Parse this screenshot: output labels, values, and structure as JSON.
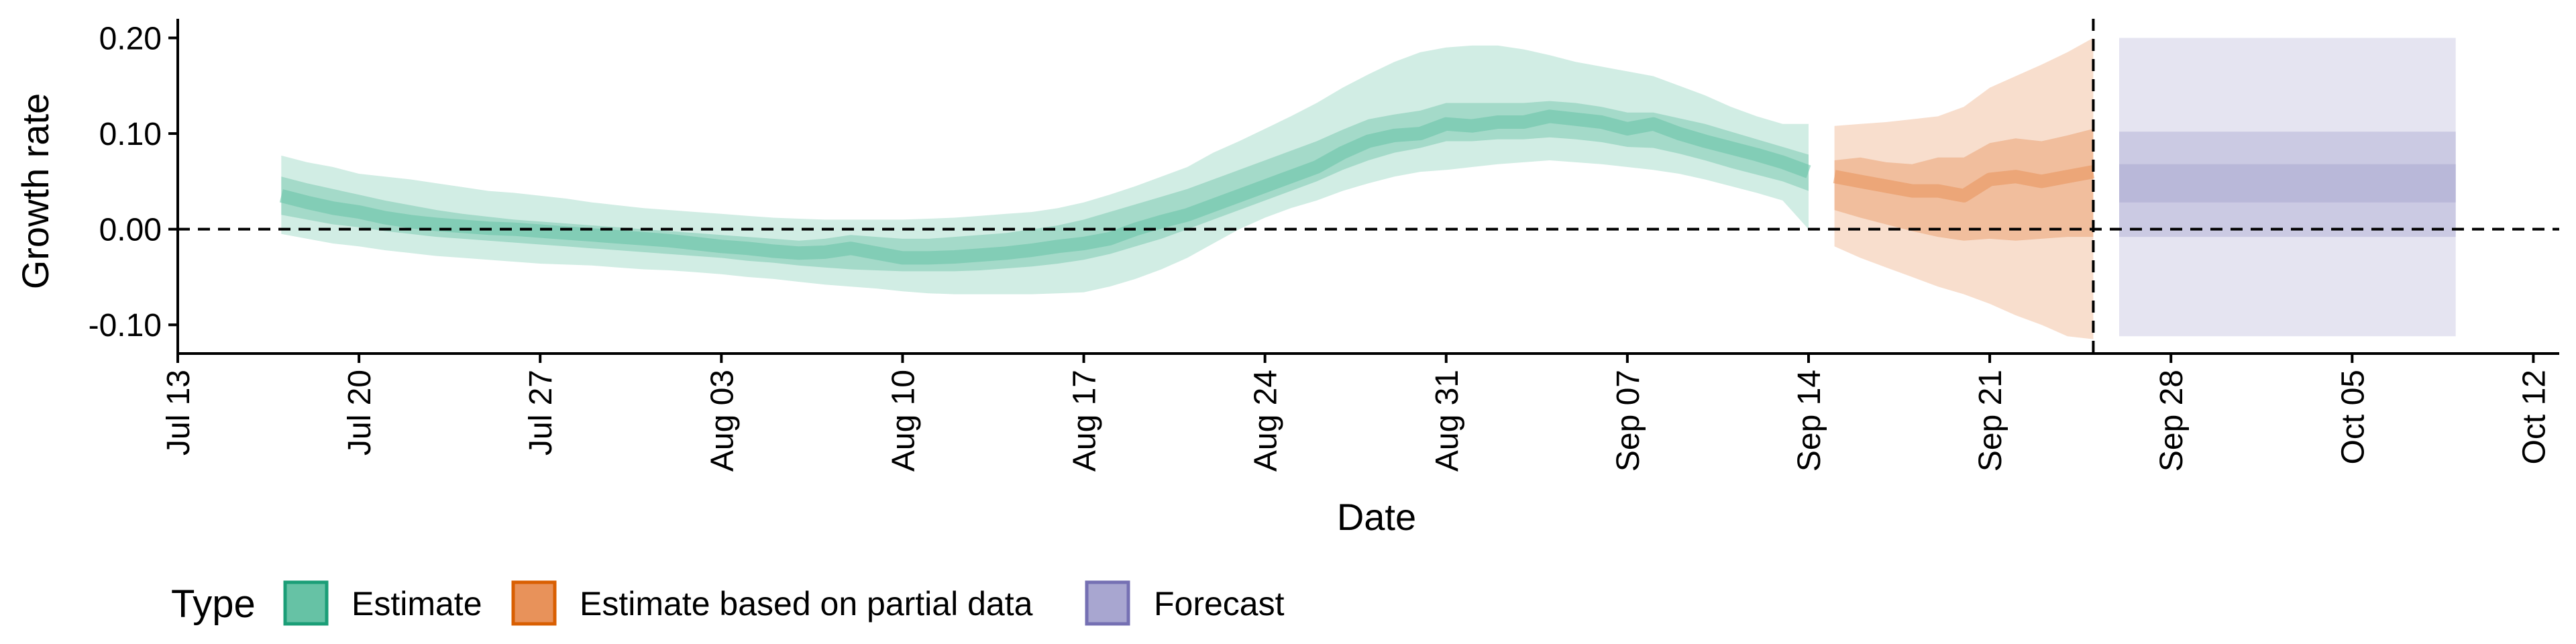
{
  "chart_data": {
    "type": "area",
    "xlabel": "Date",
    "ylabel": "Growth rate",
    "ylim": [
      -0.13,
      0.22
    ],
    "xlim": [
      "2020-07-13",
      "2020-10-13"
    ],
    "x_ticks": [
      {
        "date": "2020-07-13",
        "label": "Jul 13"
      },
      {
        "date": "2020-07-20",
        "label": "Jul 20"
      },
      {
        "date": "2020-07-27",
        "label": "Jul 27"
      },
      {
        "date": "2020-08-03",
        "label": "Aug 03"
      },
      {
        "date": "2020-08-10",
        "label": "Aug 10"
      },
      {
        "date": "2020-08-17",
        "label": "Aug 17"
      },
      {
        "date": "2020-08-24",
        "label": "Aug 24"
      },
      {
        "date": "2020-08-31",
        "label": "Aug 31"
      },
      {
        "date": "2020-09-07",
        "label": "Sep 07"
      },
      {
        "date": "2020-09-14",
        "label": "Sep 14"
      },
      {
        "date": "2020-09-21",
        "label": "Sep 21"
      },
      {
        "date": "2020-09-28",
        "label": "Sep 28"
      },
      {
        "date": "2020-10-05",
        "label": "Oct 05"
      },
      {
        "date": "2020-10-12",
        "label": "Oct 12"
      }
    ],
    "y_ticks": [
      {
        "value": -0.1,
        "label": "-0.10"
      },
      {
        "value": 0.0,
        "label": "0.00"
      },
      {
        "value": 0.1,
        "label": "0.10"
      },
      {
        "value": 0.2,
        "label": "0.20"
      }
    ],
    "reference_lines": {
      "horizontal_y": 0.0,
      "vertical_x": "2020-09-25"
    },
    "grid": false,
    "legend": {
      "position": "bottom",
      "title": "Type",
      "entries": [
        {
          "label": "Estimate",
          "fill": "#66c2a5",
          "stroke": "#1b9e77"
        },
        {
          "label": "Estimate based on partial data",
          "fill": "#e8925a",
          "stroke": "#d95f02"
        },
        {
          "label": "Forecast",
          "fill": "#a8a6d0",
          "stroke": "#7570b3"
        }
      ]
    },
    "series": [
      {
        "name": "Estimate",
        "color": "#66c2a5",
        "x": [
          "2020-07-17",
          "2020-07-18",
          "2020-07-19",
          "2020-07-20",
          "2020-07-21",
          "2020-07-22",
          "2020-07-23",
          "2020-07-24",
          "2020-07-25",
          "2020-07-26",
          "2020-07-27",
          "2020-07-28",
          "2020-07-29",
          "2020-07-30",
          "2020-07-31",
          "2020-08-01",
          "2020-08-02",
          "2020-08-03",
          "2020-08-04",
          "2020-08-05",
          "2020-08-06",
          "2020-08-07",
          "2020-08-08",
          "2020-08-09",
          "2020-08-10",
          "2020-08-11",
          "2020-08-12",
          "2020-08-13",
          "2020-08-14",
          "2020-08-15",
          "2020-08-16",
          "2020-08-17",
          "2020-08-18",
          "2020-08-19",
          "2020-08-20",
          "2020-08-21",
          "2020-08-22",
          "2020-08-23",
          "2020-08-24",
          "2020-08-25",
          "2020-08-26",
          "2020-08-27",
          "2020-08-28",
          "2020-08-29",
          "2020-08-30",
          "2020-08-31",
          "2020-09-01",
          "2020-09-02",
          "2020-09-03",
          "2020-09-04",
          "2020-09-05",
          "2020-09-06",
          "2020-09-07",
          "2020-09-08",
          "2020-09-09",
          "2020-09-10",
          "2020-09-11",
          "2020-09-12",
          "2020-09-13",
          "2020-09-14"
        ],
        "median": [
          0.035,
          0.028,
          0.022,
          0.018,
          0.012,
          0.008,
          0.005,
          0.003,
          0.001,
          0.0,
          -0.002,
          -0.004,
          -0.006,
          -0.008,
          -0.01,
          -0.012,
          -0.015,
          -0.018,
          -0.02,
          -0.023,
          -0.025,
          -0.024,
          -0.02,
          -0.025,
          -0.03,
          -0.03,
          -0.029,
          -0.027,
          -0.025,
          -0.022,
          -0.018,
          -0.015,
          -0.01,
          0.0,
          0.008,
          0.015,
          0.025,
          0.035,
          0.045,
          0.055,
          0.065,
          0.08,
          0.092,
          0.098,
          0.1,
          0.11,
          0.108,
          0.112,
          0.112,
          0.118,
          0.115,
          0.112,
          0.105,
          0.11,
          0.1,
          0.092,
          0.085,
          0.078,
          0.07,
          0.06
        ],
        "lower90": [
          -0.005,
          -0.01,
          -0.015,
          -0.018,
          -0.022,
          -0.025,
          -0.028,
          -0.03,
          -0.032,
          -0.034,
          -0.036,
          -0.037,
          -0.038,
          -0.04,
          -0.042,
          -0.043,
          -0.045,
          -0.047,
          -0.05,
          -0.052,
          -0.055,
          -0.058,
          -0.06,
          -0.062,
          -0.065,
          -0.067,
          -0.068,
          -0.068,
          -0.068,
          -0.068,
          -0.067,
          -0.066,
          -0.06,
          -0.052,
          -0.042,
          -0.03,
          -0.015,
          0.0,
          0.012,
          0.022,
          0.03,
          0.04,
          0.048,
          0.055,
          0.06,
          0.062,
          0.065,
          0.068,
          0.07,
          0.072,
          0.07,
          0.068,
          0.065,
          0.062,
          0.058,
          0.052,
          0.045,
          0.038,
          0.03,
          0.0
        ],
        "upper90": [
          0.077,
          0.07,
          0.065,
          0.058,
          0.055,
          0.052,
          0.048,
          0.044,
          0.04,
          0.038,
          0.035,
          0.032,
          0.028,
          0.025,
          0.022,
          0.02,
          0.018,
          0.016,
          0.014,
          0.012,
          0.011,
          0.01,
          0.01,
          0.01,
          0.01,
          0.011,
          0.012,
          0.014,
          0.016,
          0.018,
          0.022,
          0.028,
          0.036,
          0.045,
          0.055,
          0.065,
          0.08,
          0.092,
          0.105,
          0.118,
          0.132,
          0.148,
          0.162,
          0.175,
          0.185,
          0.19,
          0.192,
          0.192,
          0.188,
          0.182,
          0.175,
          0.17,
          0.165,
          0.16,
          0.15,
          0.14,
          0.128,
          0.118,
          0.11,
          0.11
        ],
        "lower50": [
          0.015,
          0.01,
          0.005,
          0.002,
          -0.002,
          -0.005,
          -0.008,
          -0.01,
          -0.012,
          -0.014,
          -0.016,
          -0.018,
          -0.02,
          -0.022,
          -0.024,
          -0.026,
          -0.028,
          -0.03,
          -0.033,
          -0.035,
          -0.038,
          -0.04,
          -0.042,
          -0.043,
          -0.044,
          -0.044,
          -0.044,
          -0.043,
          -0.041,
          -0.039,
          -0.036,
          -0.032,
          -0.026,
          -0.018,
          -0.01,
          0.0,
          0.01,
          0.02,
          0.03,
          0.04,
          0.05,
          0.062,
          0.072,
          0.08,
          0.085,
          0.092,
          0.092,
          0.094,
          0.094,
          0.096,
          0.094,
          0.091,
          0.086,
          0.085,
          0.079,
          0.072,
          0.064,
          0.057,
          0.05,
          0.04
        ],
        "upper50": [
          0.055,
          0.048,
          0.042,
          0.036,
          0.03,
          0.025,
          0.02,
          0.016,
          0.013,
          0.01,
          0.008,
          0.006,
          0.004,
          0.002,
          0.0,
          -0.002,
          -0.004,
          -0.006,
          -0.008,
          -0.01,
          -0.012,
          -0.01,
          -0.006,
          -0.008,
          -0.01,
          -0.01,
          -0.008,
          -0.006,
          -0.004,
          0.0,
          0.004,
          0.01,
          0.018,
          0.026,
          0.034,
          0.042,
          0.052,
          0.062,
          0.072,
          0.082,
          0.092,
          0.104,
          0.115,
          0.12,
          0.124,
          0.132,
          0.132,
          0.132,
          0.132,
          0.134,
          0.132,
          0.128,
          0.122,
          0.122,
          0.116,
          0.11,
          0.102,
          0.094,
          0.086,
          0.078
        ]
      },
      {
        "name": "Estimate based on partial data",
        "color": "#e8925a",
        "x": [
          "2020-09-15",
          "2020-09-16",
          "2020-09-17",
          "2020-09-18",
          "2020-09-19",
          "2020-09-20",
          "2020-09-21",
          "2020-09-22",
          "2020-09-23",
          "2020-09-24",
          "2020-09-25"
        ],
        "median": [
          0.055,
          0.05,
          0.045,
          0.04,
          0.04,
          0.035,
          0.052,
          0.055,
          0.05,
          0.055,
          0.06
        ],
        "lower90": [
          -0.018,
          -0.03,
          -0.04,
          -0.05,
          -0.06,
          -0.068,
          -0.078,
          -0.09,
          -0.1,
          -0.112,
          -0.115
        ],
        "upper90": [
          0.108,
          0.11,
          0.112,
          0.115,
          0.118,
          0.128,
          0.148,
          0.16,
          0.172,
          0.185,
          0.2
        ],
        "lower50": [
          0.02,
          0.012,
          0.005,
          -0.002,
          -0.008,
          -0.012,
          -0.01,
          -0.012,
          -0.01,
          -0.008,
          -0.008
        ],
        "upper50": [
          0.072,
          0.075,
          0.07,
          0.068,
          0.075,
          0.075,
          0.09,
          0.095,
          0.092,
          0.098,
          0.105
        ]
      },
      {
        "name": "Forecast",
        "color": "#a8a6d0",
        "x": [
          "2020-09-26",
          "2020-10-09"
        ],
        "median": [
          0.048,
          0.048
        ],
        "lower90": [
          -0.112,
          -0.112
        ],
        "upper90": [
          0.2,
          0.2
        ],
        "lower50": [
          -0.008,
          -0.008
        ],
        "upper50": [
          0.102,
          0.102
        ],
        "lower20": [
          0.028,
          0.028
        ],
        "upper20": [
          0.068,
          0.068
        ]
      }
    ]
  }
}
